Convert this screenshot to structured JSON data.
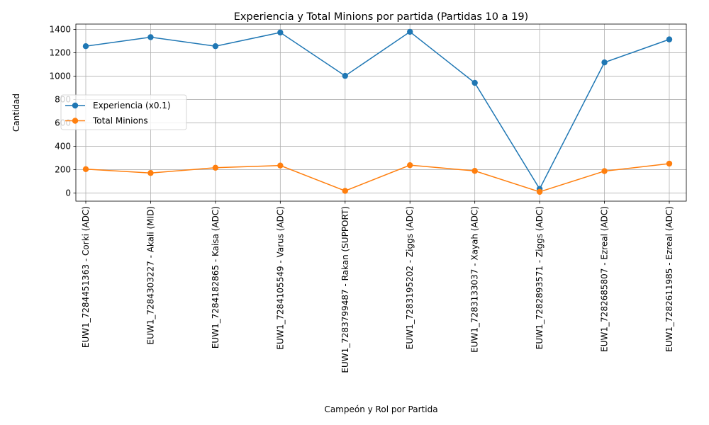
{
  "chart_data": {
    "type": "line",
    "title": "Experiencia y Total Minions por partida (Partidas 10 a 19)",
    "xlabel": "Campeón y Rol por Partida",
    "ylabel": "Cantidad",
    "ylim": [
      -70,
      1445
    ],
    "yticks": [
      0,
      200,
      400,
      600,
      800,
      1000,
      1200,
      1400
    ],
    "grid": true,
    "legend_position": "center-left",
    "categories": [
      "EUW1_7284451363 - Corki (ADC)",
      "EUW1_7284303227 - Akali (MID)",
      "EUW1_7284182865 - Kaisa (ADC)",
      "EUW1_7284105549 - Varus (ADC)",
      "EUW1_7283799487 - Rakan (SUPPORT)",
      "EUW1_7283195202 - Ziggs (ADC)",
      "EUW1_7283133037 - Xayah (ADC)",
      "EUW1_7282893571 - Ziggs (ADC)",
      "EUW1_7282685807 - Ezreal (ADC)",
      "EUW1_7282611985 - Ezreal (ADC)"
    ],
    "series": [
      {
        "name": "Experiencia (x0.1)",
        "color": "#1f77b4",
        "values": [
          1256,
          1333,
          1256,
          1373,
          1002,
          1379,
          942,
          35,
          1117,
          1314
        ]
      },
      {
        "name": "Total Minions",
        "color": "#ff7f0e",
        "values": [
          204,
          171,
          216,
          235,
          18,
          238,
          189,
          10,
          187,
          251
        ]
      }
    ]
  }
}
